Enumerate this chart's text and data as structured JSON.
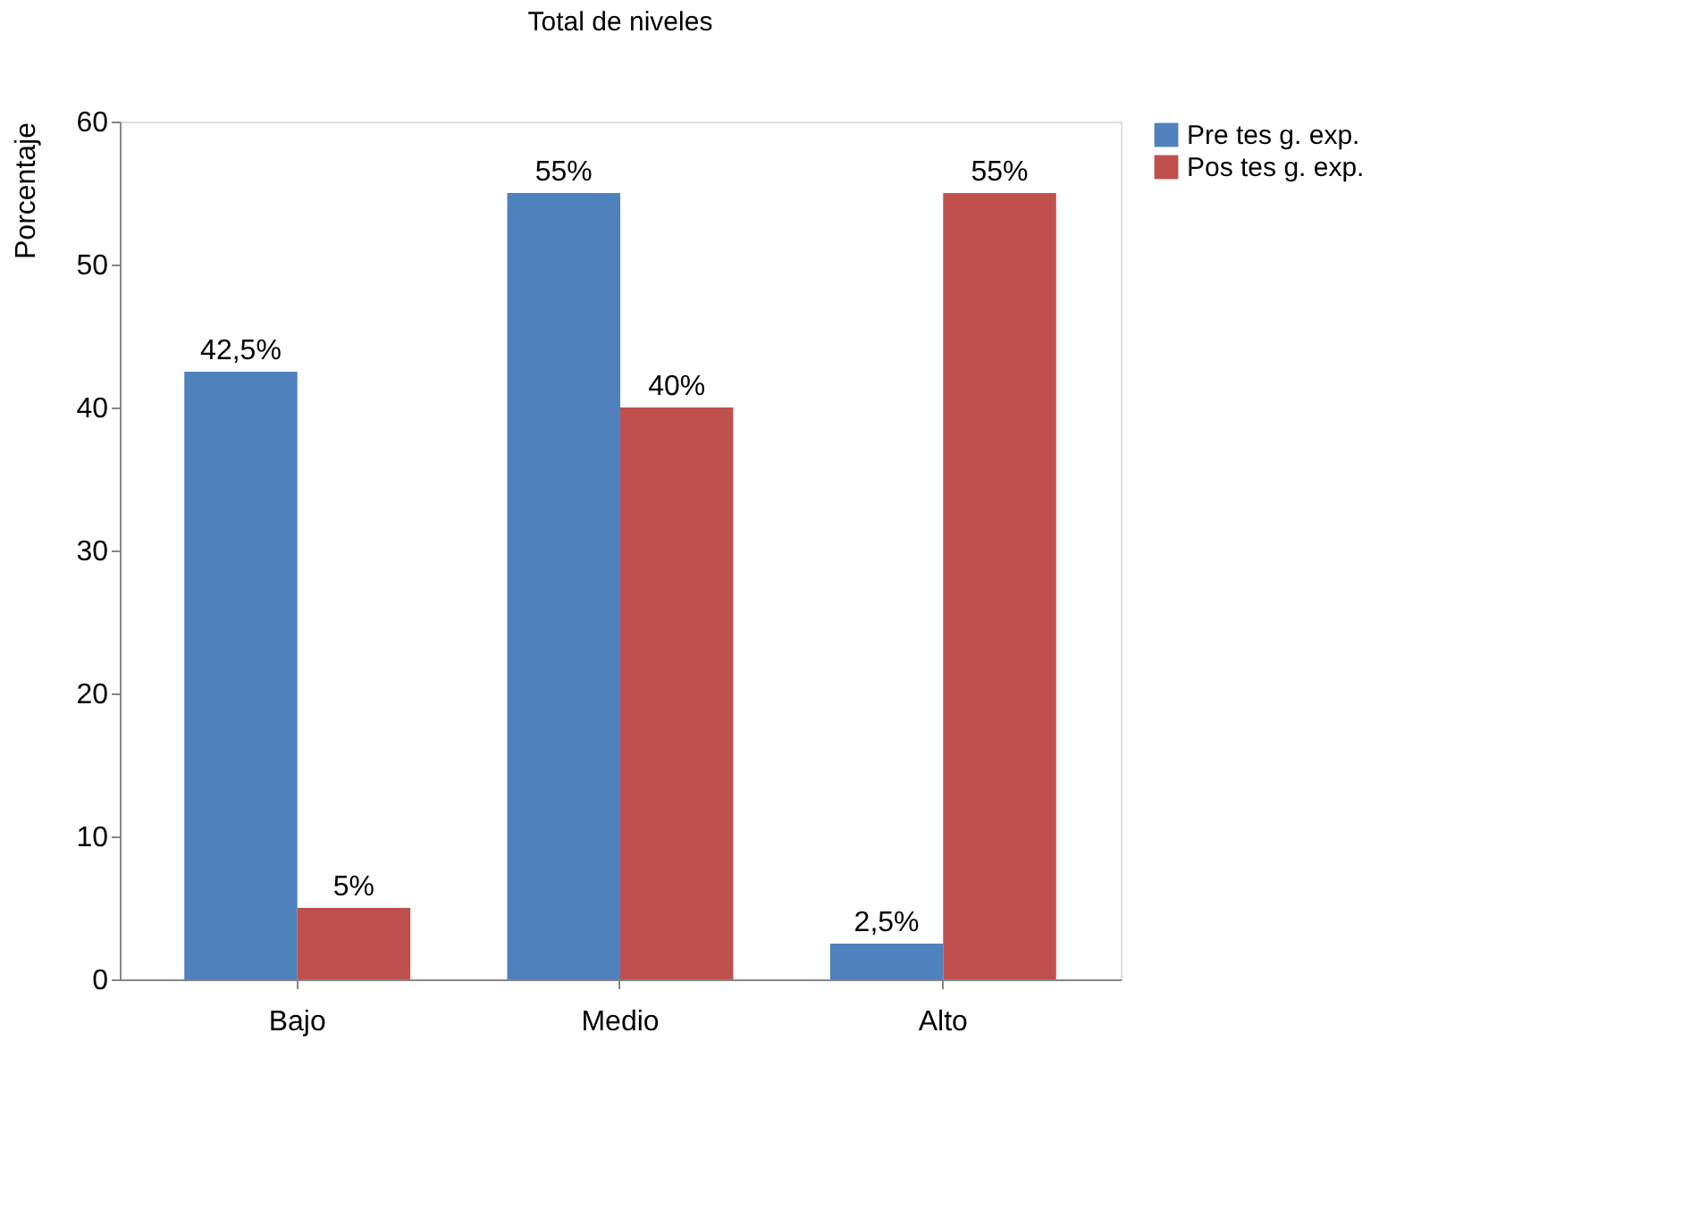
{
  "chart_data": {
    "type": "bar",
    "title": "Total de niveles",
    "ylabel": "Porcentaje",
    "categories": [
      "Bajo",
      "Medio",
      "Alto"
    ],
    "series": [
      {
        "name": "Pre tes g. exp.",
        "color": "#4f81bd",
        "values": [
          42.5,
          55,
          2.5
        ],
        "value_labels": [
          "42,5%",
          "55%",
          "2,5%"
        ]
      },
      {
        "name": "Pos tes g. exp.",
        "color": "#c0504d",
        "values": [
          5,
          40,
          55
        ],
        "value_labels": [
          "5%",
          "40%",
          "55%"
        ]
      }
    ],
    "ylim": [
      0,
      60
    ],
    "yticks": [
      0,
      10,
      20,
      30,
      40,
      50,
      60
    ],
    "grid": false,
    "legend": "right"
  }
}
